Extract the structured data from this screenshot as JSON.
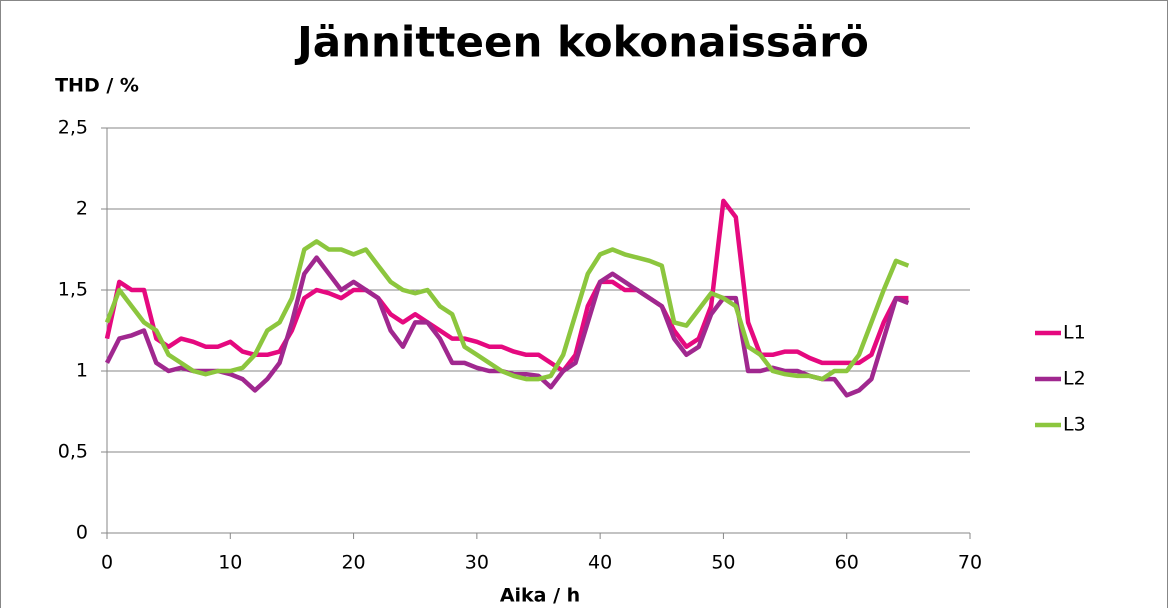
{
  "chart_data": {
    "type": "line",
    "title": "Jännitteen kokonaissärö",
    "y_label": "THD / %",
    "x_label": "Aika / h",
    "x": [
      0,
      1,
      2,
      3,
      4,
      5,
      6,
      7,
      8,
      9,
      10,
      11,
      12,
      13,
      14,
      15,
      16,
      17,
      18,
      19,
      20,
      21,
      22,
      23,
      24,
      25,
      26,
      27,
      28,
      29,
      30,
      31,
      32,
      33,
      34,
      35,
      36,
      37,
      38,
      39,
      40,
      41,
      42,
      43,
      44,
      45,
      46,
      47,
      48,
      49,
      50,
      51,
      52,
      53,
      54,
      55,
      56,
      57,
      58,
      59,
      60,
      61,
      62,
      63,
      64,
      65
    ],
    "series": [
      {
        "name": "L1",
        "color": "#e5097f",
        "values": [
          1.2,
          1.55,
          1.5,
          1.5,
          1.2,
          1.15,
          1.2,
          1.18,
          1.15,
          1.15,
          1.18,
          1.12,
          1.1,
          1.1,
          1.12,
          1.25,
          1.45,
          1.5,
          1.48,
          1.45,
          1.5,
          1.5,
          1.45,
          1.35,
          1.3,
          1.35,
          1.3,
          1.25,
          1.2,
          1.2,
          1.18,
          1.15,
          1.15,
          1.12,
          1.1,
          1.1,
          1.05,
          1.0,
          1.1,
          1.4,
          1.55,
          1.55,
          1.5,
          1.5,
          1.45,
          1.4,
          1.25,
          1.15,
          1.2,
          1.4,
          2.05,
          1.95,
          1.3,
          1.1,
          1.1,
          1.12,
          1.12,
          1.08,
          1.05,
          1.05,
          1.05,
          1.05,
          1.1,
          1.3,
          1.45,
          1.45
        ]
      },
      {
        "name": "L2",
        "color": "#a0288f",
        "values": [
          1.05,
          1.2,
          1.22,
          1.25,
          1.05,
          1.0,
          1.02,
          1.0,
          1.0,
          1.0,
          0.98,
          0.95,
          0.88,
          0.95,
          1.05,
          1.3,
          1.6,
          1.7,
          1.6,
          1.5,
          1.55,
          1.5,
          1.45,
          1.25,
          1.15,
          1.3,
          1.3,
          1.2,
          1.05,
          1.05,
          1.02,
          1.0,
          1.0,
          0.98,
          0.98,
          0.97,
          0.9,
          1.0,
          1.05,
          1.3,
          1.55,
          1.6,
          1.55,
          1.5,
          1.45,
          1.4,
          1.2,
          1.1,
          1.15,
          1.35,
          1.45,
          1.45,
          1.0,
          1.0,
          1.02,
          1.0,
          1.0,
          0.97,
          0.95,
          0.95,
          0.85,
          0.88,
          0.95,
          1.2,
          1.45,
          1.42
        ]
      },
      {
        "name": "L3",
        "color": "#8cc63e",
        "values": [
          1.3,
          1.5,
          1.4,
          1.3,
          1.25,
          1.1,
          1.05,
          1.0,
          0.98,
          1.0,
          1.0,
          1.02,
          1.1,
          1.25,
          1.3,
          1.45,
          1.75,
          1.8,
          1.75,
          1.75,
          1.72,
          1.75,
          1.65,
          1.55,
          1.5,
          1.48,
          1.5,
          1.4,
          1.35,
          1.15,
          1.1,
          1.05,
          1.0,
          0.97,
          0.95,
          0.95,
          0.97,
          1.1,
          1.35,
          1.6,
          1.72,
          1.75,
          1.72,
          1.7,
          1.68,
          1.65,
          1.3,
          1.28,
          1.38,
          1.48,
          1.45,
          1.4,
          1.15,
          1.1,
          1.0,
          0.98,
          0.97,
          0.97,
          0.95,
          1.0,
          1.0,
          1.1,
          1.3,
          1.5,
          1.68,
          1.65
        ]
      }
    ],
    "xlim": [
      0,
      70
    ],
    "xticks": [
      0,
      10,
      20,
      30,
      40,
      50,
      60,
      70
    ],
    "ylim": [
      0,
      2.5
    ],
    "yticks": [
      0,
      {
        "value": 0.5,
        "label": "0,5"
      },
      1,
      {
        "value": 1.5,
        "label": "1,5"
      },
      2,
      {
        "value": 2.5,
        "label": "2,5"
      }
    ],
    "grid": true,
    "legend": "right"
  }
}
